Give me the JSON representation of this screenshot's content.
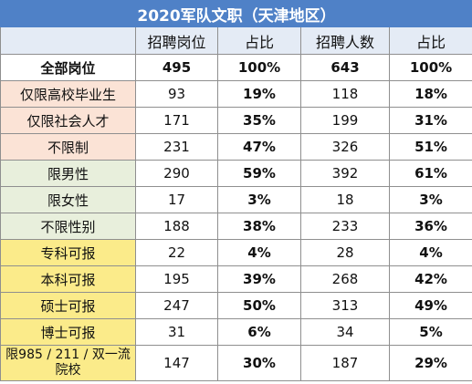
{
  "title": "2020军队文职（天津地区）",
  "headers": [
    "",
    "招聘岗位",
    "占比",
    "招聘人数",
    "占比"
  ],
  "total": {
    "label": "全部岗位",
    "positions": "495",
    "positions_pct": "100%",
    "people": "643",
    "people_pct": "100%"
  },
  "rows": [
    {
      "label": "仅限高校毕业生",
      "positions": "93",
      "positions_pct": "19%",
      "people": "118",
      "people_pct": "18%",
      "group": "peach"
    },
    {
      "label": "仅限社会人才",
      "positions": "171",
      "positions_pct": "35%",
      "people": "199",
      "people_pct": "31%",
      "group": "peach"
    },
    {
      "label": "不限制",
      "positions": "231",
      "positions_pct": "47%",
      "people": "326",
      "people_pct": "51%",
      "group": "peach"
    },
    {
      "label": "限男性",
      "positions": "290",
      "positions_pct": "59%",
      "people": "392",
      "people_pct": "61%",
      "group": "green"
    },
    {
      "label": "限女性",
      "positions": "17",
      "positions_pct": "3%",
      "people": "18",
      "people_pct": "3%",
      "group": "green"
    },
    {
      "label": "不限性别",
      "positions": "188",
      "positions_pct": "38%",
      "people": "233",
      "people_pct": "36%",
      "group": "green"
    },
    {
      "label": "专科可报",
      "positions": "22",
      "positions_pct": "4%",
      "people": "28",
      "people_pct": "4%",
      "group": "yellow"
    },
    {
      "label": "本科可报",
      "positions": "195",
      "positions_pct": "39%",
      "people": "268",
      "people_pct": "42%",
      "group": "yellow"
    },
    {
      "label": "硕士可报",
      "positions": "247",
      "positions_pct": "50%",
      "people": "313",
      "people_pct": "49%",
      "group": "yellow"
    },
    {
      "label": "博士可报",
      "positions": "31",
      "positions_pct": "6%",
      "people": "34",
      "people_pct": "5%",
      "group": "yellow"
    },
    {
      "label": "限985 / 211 / 双一流院校",
      "positions": "147",
      "positions_pct": "30%",
      "people": "187",
      "people_pct": "29%",
      "group": "yellow"
    }
  ],
  "colors": {
    "title_bg": "#4f81c7",
    "header_bg": "#e4ebf5",
    "peach": "#fbe3d6",
    "green": "#e8efdc",
    "yellow": "#fbeb8a"
  }
}
